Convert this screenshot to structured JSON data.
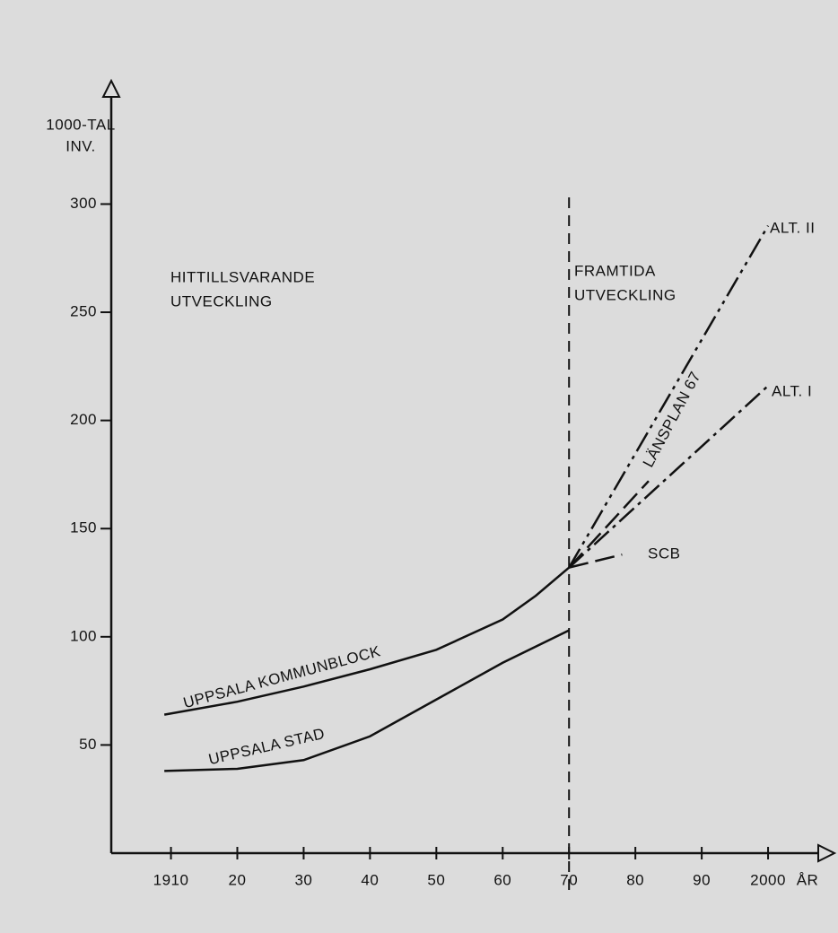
{
  "chart_data": {
    "type": "line",
    "y_label": [
      "1000-TAL",
      "INV."
    ],
    "x_label": "ÅR",
    "xlim": [
      1901,
      2010
    ],
    "ylim": [
      0,
      357
    ],
    "xticks": [
      1910,
      {
        "value": 1920,
        "label": "20"
      },
      {
        "value": 1930,
        "label": "30"
      },
      {
        "value": 1940,
        "label": "40"
      },
      {
        "value": 1950,
        "label": "50"
      },
      {
        "value": 1960,
        "label": "60"
      },
      {
        "value": 1970,
        "label": "70"
      },
      {
        "value": 1980,
        "label": "80"
      },
      {
        "value": 1990,
        "label": "90"
      },
      2000
    ],
    "yticks": [
      50,
      100,
      150,
      200,
      250,
      300
    ],
    "vline": 1970,
    "annotations": [
      [
        "HITTILLSVARANDE",
        "UTVECKLING"
      ],
      [
        "FRAMTIDA",
        "UTVECKLING"
      ]
    ],
    "series": [
      {
        "name": "UPPSALA KOMMUNBLOCK",
        "color": "#111111",
        "dash": "solid",
        "x": [
          1909,
          1920,
          1930,
          1940,
          1950,
          1960,
          1965,
          1970
        ],
        "values": [
          64,
          70,
          77,
          85,
          94,
          108,
          119,
          132
        ]
      },
      {
        "name": "UPPSALA STAD",
        "color": "#111111",
        "dash": "solid",
        "x": [
          1909,
          1920,
          1930,
          1940,
          1950,
          1960,
          1970
        ],
        "values": [
          38,
          39,
          43,
          54,
          71,
          88,
          103
        ]
      },
      {
        "name": "ALT. II",
        "color": "#111111",
        "dash": "dashdotdot",
        "x": [
          1970,
          2000
        ],
        "values": [
          132,
          290
        ]
      },
      {
        "name": "LÄNSPLAN 67",
        "color": "#111111",
        "dash": "dashed",
        "x": [
          1970,
          1982
        ],
        "values": [
          132,
          172
        ]
      },
      {
        "name": "ALT. I",
        "color": "#111111",
        "dash": "dashdot",
        "x": [
          1970,
          2000
        ],
        "values": [
          132,
          216
        ]
      },
      {
        "name": "SCB",
        "color": "#111111",
        "dash": "dashed",
        "x": [
          1970,
          1978
        ],
        "values": [
          132,
          138
        ]
      }
    ]
  }
}
